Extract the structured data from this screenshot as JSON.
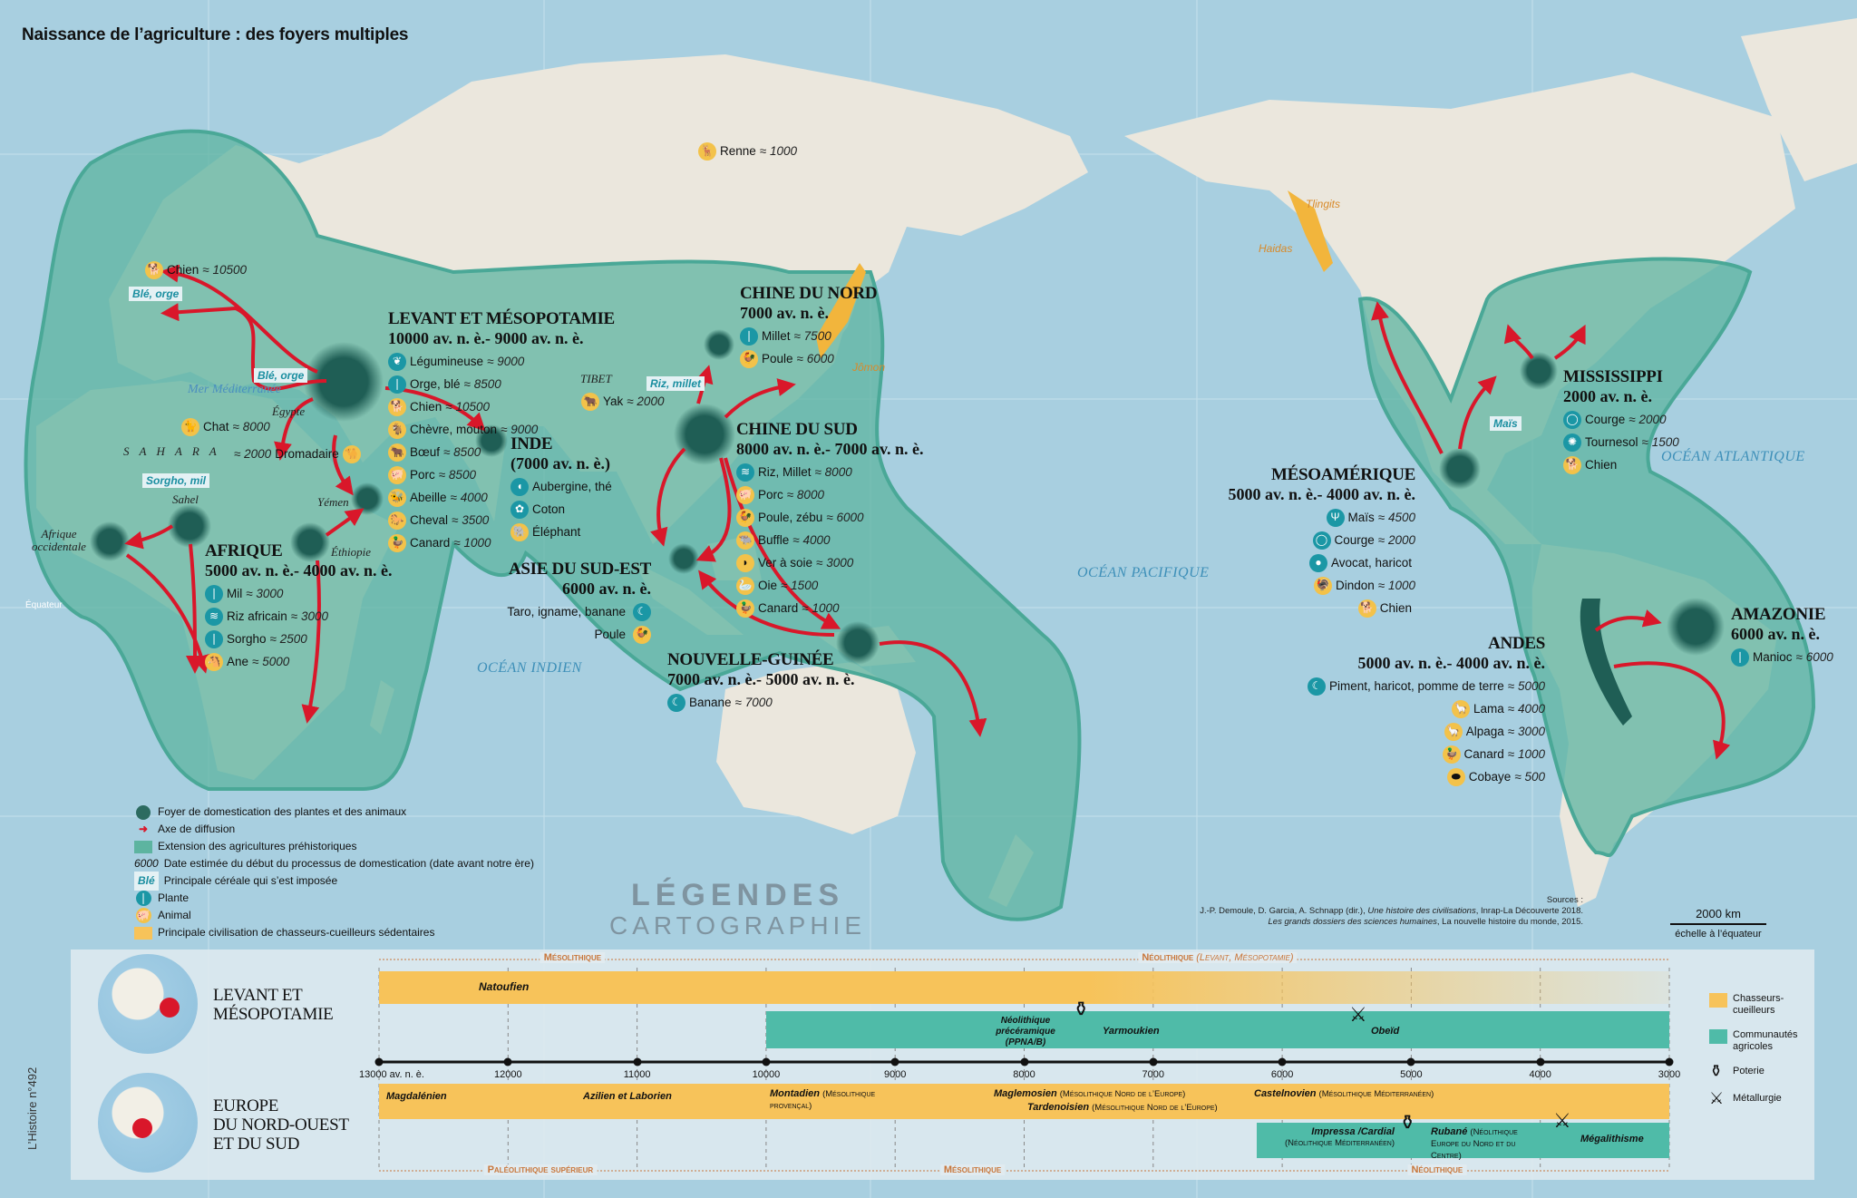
{
  "title": "Naissance de l’agriculture : des foyers multiples",
  "colors": {
    "ocean": "#a8cfe0",
    "land": "#ebe7dd",
    "extension": "#5db4a0",
    "foyer": "#1f5e55",
    "arrow": "#d9172a",
    "plant": "#1b97a5",
    "animal": "#f3c24a",
    "hunters": "#f7c35a",
    "farmers": "#4fbba8"
  },
  "regions": {
    "levant": {
      "title": "LEVANT ET MÉSOPOTAMIE",
      "dates": "10000 av. n. è.- 9000 av. n. è.",
      "items": [
        {
          "type": "plant",
          "icon": "legume-icon",
          "name": "Légumineuse",
          "date": "≈ 9000"
        },
        {
          "type": "plant",
          "icon": "wheat-icon",
          "name": "Orge, blé",
          "date": "≈ 8500"
        },
        {
          "type": "animal",
          "icon": "dog-icon",
          "name": "Chien",
          "date": "≈ 10500"
        },
        {
          "type": "animal",
          "icon": "goat-icon",
          "name": "Chèvre, mouton",
          "date": "≈ 9000"
        },
        {
          "type": "animal",
          "icon": "ox-icon",
          "name": "Bœuf",
          "date": "≈ 8500"
        },
        {
          "type": "animal",
          "icon": "pig-icon",
          "name": "Porc",
          "date": "≈ 8500"
        },
        {
          "type": "animal",
          "icon": "bee-icon",
          "name": "Abeille",
          "date": "≈ 4000"
        },
        {
          "type": "animal",
          "icon": "horse-icon",
          "name": "Cheval",
          "date": "≈ 3500"
        },
        {
          "type": "animal",
          "icon": "duck-icon",
          "name": "Canard",
          "date": "≈ 1000"
        }
      ]
    },
    "inde": {
      "title": "INDE",
      "dates": "(7000 av. n. è.)",
      "items": [
        {
          "type": "plant",
          "icon": "eggplant-icon",
          "name": "Aubergine, thé",
          "date": ""
        },
        {
          "type": "plant",
          "icon": "cotton-icon",
          "name": "Coton",
          "date": ""
        },
        {
          "type": "animal",
          "icon": "elephant-icon",
          "name": "Éléphant",
          "date": ""
        }
      ]
    },
    "chine_nord": {
      "title": "CHINE DU NORD",
      "dates": "7000 av. n. è.",
      "items": [
        {
          "type": "plant",
          "icon": "millet-icon",
          "name": "Millet",
          "date": "≈ 7500"
        },
        {
          "type": "animal",
          "icon": "chicken-icon",
          "name": "Poule",
          "date": "≈ 6000"
        }
      ]
    },
    "chine_sud": {
      "title": "CHINE DU SUD",
      "dates": "8000 av. n. è.- 7000 av. n. è.",
      "items": [
        {
          "type": "plant",
          "icon": "rice-millet-icon",
          "name": "Riz, Millet",
          "date": "≈ 8000"
        },
        {
          "type": "animal",
          "icon": "pig-icon",
          "name": "Porc",
          "date": "≈ 8000"
        },
        {
          "type": "animal",
          "icon": "chicken-icon",
          "name": "Poule, zébu",
          "date": "≈ 6000"
        },
        {
          "type": "animal",
          "icon": "buffalo-icon",
          "name": "Buffle",
          "date": "≈ 4000"
        },
        {
          "type": "animal",
          "icon": "silkworm-icon",
          "name": "Ver à soie",
          "date": "≈ 3000"
        },
        {
          "type": "animal",
          "icon": "goose-icon",
          "name": "Oie",
          "date": "≈ 1500"
        },
        {
          "type": "animal",
          "icon": "duck-icon",
          "name": "Canard",
          "date": "≈ 1000"
        }
      ]
    },
    "asie_se": {
      "title": "ASIE DU SUD-EST",
      "dates": "6000 av. n. è.",
      "items": [
        {
          "type": "plant",
          "icon": "banana-icon",
          "name": "Taro, igname, banane",
          "date": ""
        },
        {
          "type": "animal",
          "icon": "chicken-icon",
          "name": "Poule",
          "date": ""
        }
      ]
    },
    "nguinee": {
      "title": "NOUVELLE-GUINÉE",
      "dates": "7000 av. n. è.- 5000 av. n. è.",
      "items": [
        {
          "type": "plant",
          "icon": "banana-icon",
          "name": "Banane",
          "date": "≈ 7000"
        }
      ]
    },
    "afrique": {
      "title": "AFRIQUE",
      "dates": "5000 av. n. è.- 4000 av. n. è.",
      "items": [
        {
          "type": "plant",
          "icon": "millet-icon",
          "name": "Mil",
          "date": "≈ 3000"
        },
        {
          "type": "plant",
          "icon": "rice-icon",
          "name": "Riz africain",
          "date": "≈ 3000"
        },
        {
          "type": "plant",
          "icon": "sorghum-icon",
          "name": "Sorgho",
          "date": "≈ 2500"
        },
        {
          "type": "animal",
          "icon": "donkey-icon",
          "name": "Ane",
          "date": "≈ 5000"
        }
      ]
    },
    "mesoamerique": {
      "title": "MÉSOAMÉRIQUE",
      "dates": "5000 av. n. è.- 4000 av. n. è.",
      "items": [
        {
          "type": "plant",
          "icon": "corn-icon",
          "name": "Maïs",
          "date": "≈ 4500"
        },
        {
          "type": "plant",
          "icon": "squash-icon",
          "name": "Courge",
          "date": "≈ 2000"
        },
        {
          "type": "plant",
          "icon": "avocado-icon",
          "name": "Avocat, haricot",
          "date": ""
        },
        {
          "type": "animal",
          "icon": "turkey-icon",
          "name": "Dindon",
          "date": "≈ 1000"
        },
        {
          "type": "animal",
          "icon": "dog-icon",
          "name": "Chien",
          "date": ""
        }
      ]
    },
    "mississippi": {
      "title": "MISSISSIPPI",
      "dates": "2000 av. n. è.",
      "items": [
        {
          "type": "plant",
          "icon": "squash-icon",
          "name": "Courge",
          "date": "≈ 2000"
        },
        {
          "type": "plant",
          "icon": "sunflower-icon",
          "name": "Tournesol",
          "date": "≈ 1500"
        },
        {
          "type": "animal",
          "icon": "dog-icon",
          "name": "Chien",
          "date": ""
        }
      ]
    },
    "andes": {
      "title": "ANDES",
      "dates": "5000 av. n. è.- 4000 av. n. è.",
      "items": [
        {
          "type": "plant",
          "icon": "pepper-icon",
          "name": "Piment, haricot, pomme de terre",
          "date": "≈ 5000"
        },
        {
          "type": "animal",
          "icon": "llama-icon",
          "name": "Lama",
          "date": "≈ 4000"
        },
        {
          "type": "animal",
          "icon": "alpaca-icon",
          "name": "Alpaga",
          "date": "≈ 3000"
        },
        {
          "type": "animal",
          "icon": "duck-icon",
          "name": "Canard",
          "date": "≈ 1000"
        },
        {
          "type": "animal",
          "icon": "guinea-pig-icon",
          "name": "Cobaye",
          "date": "≈ 500"
        }
      ]
    },
    "amazonie": {
      "title": "AMAZONIE",
      "dates": "6000 av. n. è.",
      "items": [
        {
          "type": "plant",
          "icon": "manioc-icon",
          "name": "Manioc",
          "date": "≈ 6000"
        }
      ]
    }
  },
  "loose": {
    "europe_dog": {
      "type": "animal",
      "icon": "dog-icon",
      "name": "Chien",
      "date": "≈ 10500"
    },
    "chat": {
      "type": "animal",
      "icon": "cat-icon",
      "name": "Chat",
      "date": "≈ 8000"
    },
    "dromadaire": {
      "type": "animal",
      "icon": "camel-icon",
      "name": "Dromadaire",
      "date": "≈ 2000"
    },
    "yak": {
      "type": "animal",
      "icon": "yak-icon",
      "name": "Yak",
      "date": "≈ 2000"
    },
    "renne": {
      "type": "animal",
      "icon": "reindeer-icon",
      "name": "Renne",
      "date": "≈ 1000"
    }
  },
  "places": {
    "egypte": "Égypte",
    "sahara": "S A H A R A",
    "sahel": "Sahel",
    "yemen": "Yémen",
    "ethiopie": "Éthiopie",
    "afrique_occ": "Afrique occidentale",
    "tibet": "TIBET",
    "mediterranee": "Mer Méditerranée",
    "equateur": "Équateur"
  },
  "oceans": {
    "indien": "OCÉAN INDIEN",
    "pacifique": "OCÉAN PACIFIQUE",
    "atlantique": "OCÉAN ATLANTIQUE"
  },
  "cereals": {
    "europe": "Blé, orge",
    "levant": "Blé, orge",
    "afrique": "Sorgho, mil",
    "chine": "Riz, millet",
    "amerique": "Maïs"
  },
  "hunter_gatherers": {
    "jomon": "Jômon",
    "tlingits": "Tlingits",
    "haidas": "Haidas"
  },
  "legend": [
    {
      "symbol": "foyer",
      "text": "Foyer de domestication des plantes et des animaux"
    },
    {
      "symbol": "arrow",
      "text": "Axe de diffusion"
    },
    {
      "symbol": "extension",
      "text": "Extension des agricultures préhistoriques"
    },
    {
      "symbol": "date",
      "sample": "6000",
      "text": "Date estimée du début du processus de domestication  (date avant notre ère)"
    },
    {
      "symbol": "cereal",
      "sample": "Blé",
      "text": "Principale céréale qui s’est imposée"
    },
    {
      "symbol": "plant",
      "text": "Plante"
    },
    {
      "symbol": "animal",
      "text": "Animal"
    },
    {
      "symbol": "hunters",
      "text": "Principale civilisation de chasseurs-cueilleurs sédentaires"
    }
  ],
  "logo": {
    "line1": "LÉGENDES",
    "line2": "CARTOGRAPHIE"
  },
  "sources": {
    "label": "Sources :",
    "line1_authors": "J.-P. Demoule, D. Garcia, A. Schnapp (dir.), ",
    "line1_title": "Une histoire des civilisations",
    "line1_rest": ", Inrap-La Découverte 2018.",
    "line2_title": "Les grands dossiers des sciences humaines",
    "line2_rest": ", La nouvelle histoire du monde, 2015."
  },
  "scale": {
    "distance": "2000 km",
    "note": "échelle à l’équateur"
  },
  "magazine": "L’Histoire n°492",
  "timeline": {
    "range": [
      13000,
      3000
    ],
    "ticks": [
      "13000 av. n. è.",
      "12000",
      "11000",
      "10000",
      "9000",
      "8000",
      "7000",
      "6000",
      "5000",
      "4000",
      "3000"
    ],
    "tick_values": [
      13000,
      12000,
      11000,
      10000,
      9000,
      8000,
      7000,
      6000,
      5000,
      4000,
      3000
    ],
    "rows": [
      {
        "label_1": "LEVANT ET",
        "label_2": "MÉSOPOTAMIE",
        "label_3": ""
      },
      {
        "label_1": "EUROPE",
        "label_2": "DU NORD-OUEST",
        "label_3": "ET DU SUD"
      }
    ],
    "periods_top": [
      {
        "label": "Mésolithique",
        "center": 11500
      },
      {
        "label": "Néolithique",
        "sub": "(Levant, Mésopotamie)",
        "center": 6500
      }
    ],
    "periods_bottom": [
      {
        "label": "Paléolithique supérieur",
        "center": 11750
      },
      {
        "label": "Mésolithique",
        "center": 8400
      },
      {
        "label": "Néolithique",
        "center": 4800
      }
    ],
    "bars": [
      {
        "row": 0,
        "kind": "hunters",
        "start": 13000,
        "end": 3000,
        "label": "Natoufien"
      },
      {
        "row": 0,
        "kind": "farmers",
        "start": 10000,
        "end": 3000,
        "label": ""
      },
      {
        "row": 1,
        "kind": "hunters",
        "start": 13000,
        "end": 3000,
        "label": ""
      },
      {
        "row": 1,
        "kind": "farmers",
        "start": 6200,
        "end": 3000,
        "label": ""
      }
    ],
    "notes": {
      "ppnab": "Néolithique précéramique (PPNA/B)",
      "yarmoukien": "Yarmoukien",
      "obeid": "Obeïd",
      "magdalenien": "Magdalénien",
      "azilien": "Azilien et Laborien",
      "montadien": "Montadien",
      "montadien_sub": "(Mésolithique provençal)",
      "maglemosien": "Maglemosien",
      "maglemosien_sub": "(Mésolithique Nord de l’Europe)",
      "castelnovien": "Castelnovien",
      "castelnovien_sub": "(Mésolithique Méditerranéen)",
      "tardenoisien": "Tardenoisien",
      "tardenoisien_sub": "(Mésolithique Nord de l’Europe)",
      "impressa": "Impressa /Cardial",
      "impressa_sub": "(Néolithique Méditerranéen)",
      "rubane": "Rubané",
      "rubane_sub": "(Néolithique Europe du Nord et du Centre)",
      "megalithisme": "Mégalithisme"
    },
    "legend": [
      {
        "kind": "hunters",
        "text": "Chasseurs-cueilleurs"
      },
      {
        "kind": "farmers",
        "text": "Communautés agricoles"
      },
      {
        "kind": "pottery",
        "text": "Poterie"
      },
      {
        "kind": "metal",
        "text": "Métallurgie"
      }
    ]
  }
}
